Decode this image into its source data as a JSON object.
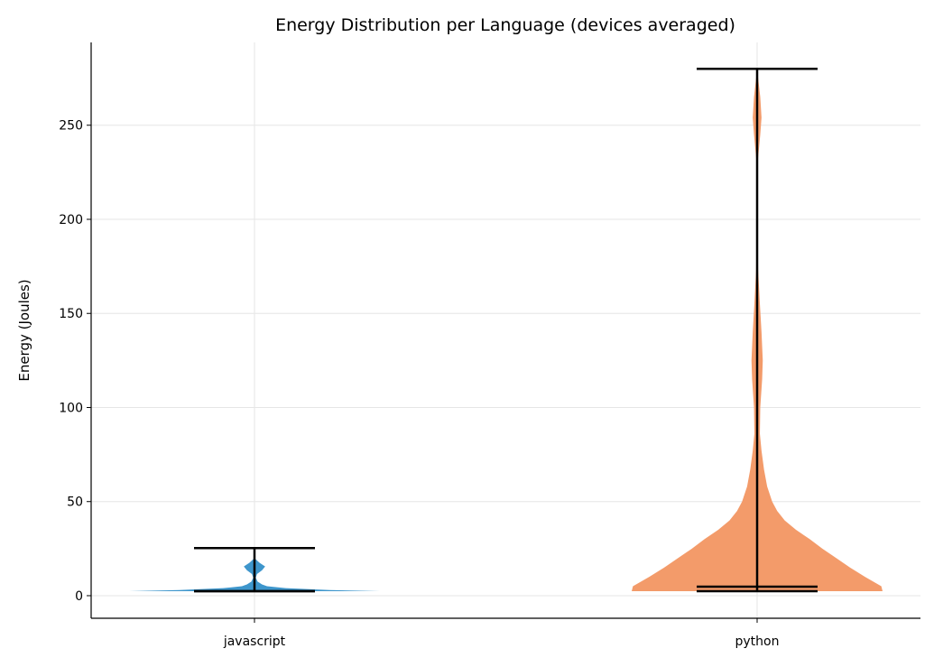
{
  "chart_data": {
    "type": "violin",
    "title": "Energy Distribution per Language (devices averaged)",
    "xlabel": "",
    "ylabel": "Energy (Joules)",
    "categories": [
      "javascript",
      "python"
    ],
    "ylim": [
      -12,
      294
    ],
    "yticks": [
      0,
      50,
      100,
      150,
      200,
      250
    ],
    "grid": true,
    "colors": [
      "#3e96cc",
      "#f39b6a"
    ],
    "series": [
      {
        "category": "javascript",
        "min": 2.4,
        "median": 2.4,
        "max": 25.3,
        "density": [
          [
            2.4,
            1.0
          ],
          [
            3.0,
            0.6
          ],
          [
            4.0,
            0.25
          ],
          [
            5.0,
            0.1
          ],
          [
            6.0,
            0.06
          ],
          [
            7.5,
            0.025
          ],
          [
            9.5,
            0.01
          ],
          [
            11.5,
            0.02
          ],
          [
            13.5,
            0.06
          ],
          [
            15.5,
            0.085
          ],
          [
            17.5,
            0.04
          ],
          [
            19.5,
            0.008
          ],
          [
            22,
            0.0
          ],
          [
            25.3,
            0.0
          ]
        ]
      },
      {
        "category": "python",
        "min": 2.4,
        "median": 4.8,
        "max": 280,
        "density": [
          [
            2.4,
            1.0
          ],
          [
            5,
            0.99
          ],
          [
            10,
            0.86
          ],
          [
            15,
            0.74
          ],
          [
            20,
            0.63
          ],
          [
            25,
            0.52
          ],
          [
            30,
            0.42
          ],
          [
            35,
            0.31
          ],
          [
            40,
            0.22
          ],
          [
            45,
            0.16
          ],
          [
            50,
            0.12
          ],
          [
            58,
            0.08
          ],
          [
            67,
            0.055
          ],
          [
            77,
            0.035
          ],
          [
            86,
            0.022
          ],
          [
            100,
            0.025
          ],
          [
            115,
            0.04
          ],
          [
            125,
            0.045
          ],
          [
            140,
            0.035
          ],
          [
            155,
            0.022
          ],
          [
            173,
            0.008
          ],
          [
            197,
            0.004
          ],
          [
            230,
            0.004
          ],
          [
            245,
            0.025
          ],
          [
            254,
            0.035
          ],
          [
            265,
            0.025
          ],
          [
            275,
            0.008
          ],
          [
            280,
            0.0
          ]
        ]
      }
    ]
  }
}
